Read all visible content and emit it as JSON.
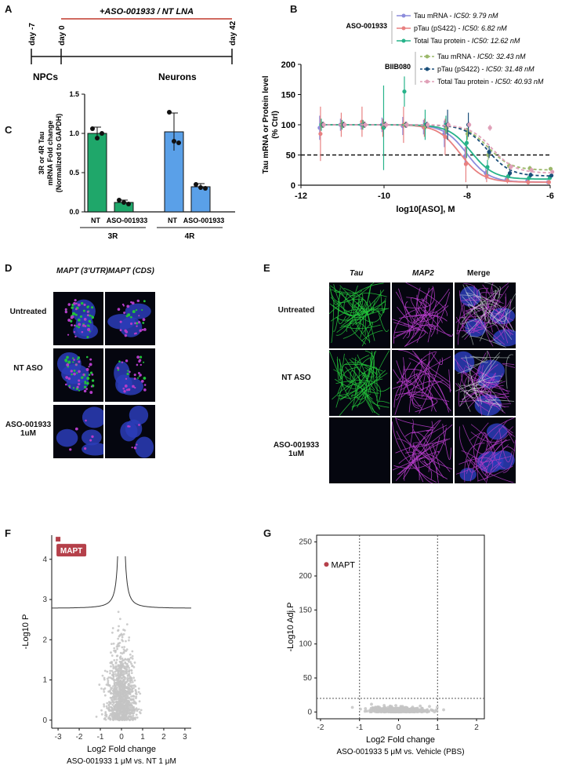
{
  "panel_labels": {
    "A": "A",
    "B": "B",
    "C": "C",
    "D": "D",
    "E": "E",
    "F": "F",
    "G": "G"
  },
  "timeline": {
    "treatment": "+ASO-001933 / NT LNA",
    "days": [
      "day -7",
      "day 0",
      "day 42"
    ],
    "stage_left": "NPCs",
    "stage_right": "Neurons"
  },
  "colors": {
    "tau_mrna": "#8c8cdc",
    "ptau": "#e88080",
    "total_tau": "#27b38a",
    "biib_tau_mrna": "#9bb86a",
    "biib_ptau": "#1a4f7a",
    "biib_total": "#e0a0b8",
    "bar_3r": "#1fa76a",
    "bar_4r": "#5aa0e8",
    "volcano_hit": "#b5404a",
    "volcano_grey": "#c4c4c4",
    "microscopy_blue": "#2b3db8",
    "microscopy_green": "#22c23a",
    "microscopy_magenta": "#b43cc8"
  },
  "panel_b": {
    "legend_groups": [
      {
        "name": "ASO-001933",
        "entries": [
          {
            "label": "Tau mRNA - ",
            "ic50": "IC50: 9.79 nM",
            "color_key": "tau_mrna",
            "dash": false
          },
          {
            "label": "pTau (pS422) - ",
            "ic50": "IC50: 6.82 nM",
            "color_key": "ptau",
            "dash": false
          },
          {
            "label": "Total Tau protein - ",
            "ic50": "IC50: 12.62 nM",
            "color_key": "total_tau",
            "dash": false
          }
        ]
      },
      {
        "name": "BIIB080",
        "entries": [
          {
            "label": "Tau mRNA - ",
            "ic50": "IC50: 32.43 nM",
            "color_key": "biib_tau_mrna",
            "dash": true
          },
          {
            "label": "pTau (pS422) - ",
            "ic50": "IC50: 31.48 nM",
            "color_key": "biib_ptau",
            "dash": true
          },
          {
            "label": "Total Tau protein - ",
            "ic50": "IC50: 40.93 nM",
            "color_key": "biib_total",
            "dash": true
          }
        ]
      }
    ]
  },
  "panel_d": {
    "columns": [
      "MAPT (3'UTR)",
      "MAPT (CDS)"
    ],
    "rows": [
      "Untreated",
      "NT ASO",
      "ASO-001933\n1uM"
    ]
  },
  "panel_e": {
    "columns": [
      "Tau",
      "MAP2",
      "Merge"
    ],
    "rows": [
      "Untreated",
      "NT ASO",
      "ASO-001933\n1uM"
    ]
  },
  "chart_data": [
    {
      "id": "C",
      "type": "bar",
      "ylabel": "3R or 4R Tau\nmRNA Fold change\n(Normalized to GAPDH)",
      "ylim": [
        0,
        1.5
      ],
      "yticks": [
        0.0,
        0.5,
        1.0,
        1.5
      ],
      "groups": [
        {
          "name": "3R",
          "color_key": "bar_3r",
          "bars": [
            {
              "label": "NT",
              "value": 1.0,
              "err": 0.08,
              "points": [
                1.06,
                0.94,
                1.0
              ]
            },
            {
              "label": "ASO-001933",
              "value": 0.12,
              "err": 0.03,
              "points": [
                0.15,
                0.12,
                0.1
              ]
            }
          ]
        },
        {
          "name": "4R",
          "color_key": "bar_4r",
          "bars": [
            {
              "label": "NT",
              "value": 1.02,
              "err": 0.24,
              "points": [
                1.27,
                0.9,
                0.88
              ]
            },
            {
              "label": "ASO-001933",
              "value": 0.32,
              "err": 0.04,
              "points": [
                0.35,
                0.31,
                0.3
              ]
            }
          ]
        }
      ]
    },
    {
      "id": "B",
      "type": "line",
      "xlabel": "log10[ASO], M",
      "ylabel": "Tau mRNA or Protein level\n(% Ctrl)",
      "xlim": [
        -12,
        -6
      ],
      "ylim": [
        0,
        200
      ],
      "xticks": [
        -12,
        -10,
        -8,
        -6
      ],
      "yticks": [
        0,
        50,
        100,
        150,
        200
      ],
      "reference_line": 50,
      "x": [
        -11.5,
        -11,
        -10.5,
        -10,
        -9.5,
        -9,
        -8.5,
        -8,
        -7.5,
        -7,
        -6.5,
        -6
      ],
      "series": [
        {
          "name": "Tau mRNA",
          "color_key": "tau_mrna",
          "ic50_log": -8.01,
          "bottom": 5,
          "dash": false,
          "y": [
            95,
            100,
            100,
            100,
            98,
            96,
            85,
            48,
            20,
            10,
            7,
            5
          ],
          "err": [
            20,
            10,
            8,
            12,
            15,
            12,
            22,
            15,
            10,
            5,
            4,
            3
          ]
        },
        {
          "name": "pTau (pS422)",
          "color_key": "ptau",
          "ic50_log": -8.17,
          "bottom": 5,
          "dash": false,
          "y": [
            85,
            100,
            105,
            95,
            100,
            95,
            80,
            35,
            15,
            8,
            5,
            5
          ],
          "err": [
            45,
            20,
            25,
            15,
            30,
            15,
            30,
            30,
            10,
            5,
            4,
            3
          ]
        },
        {
          "name": "Total Tau protein",
          "color_key": "total_tau",
          "ic50_log": -7.9,
          "bottom": 10,
          "dash": false,
          "y": [
            100,
            100,
            100,
            95,
            155,
            100,
            100,
            70,
            30,
            15,
            12,
            12
          ],
          "err": [
            10,
            8,
            8,
            70,
            25,
            25,
            15,
            25,
            12,
            5,
            4,
            3
          ]
        },
        {
          "name": "Tau mRNA",
          "color_key": "biib_tau_mrna",
          "ic50_log": -7.49,
          "bottom": 25,
          "dash": true,
          "y": [
            100,
            100,
            100,
            100,
            100,
            98,
            95,
            85,
            50,
            32,
            28,
            27
          ],
          "err": [
            5,
            5,
            5,
            5,
            5,
            5,
            8,
            10,
            8,
            5,
            4,
            3
          ]
        },
        {
          "name": "pTau (pS422)",
          "color_key": "biib_ptau",
          "ic50_log": -7.5,
          "bottom": 15,
          "dash": true,
          "y": [
            100,
            100,
            100,
            100,
            100,
            100,
            100,
            100,
            55,
            20,
            17,
            16
          ],
          "err": [
            5,
            5,
            5,
            5,
            5,
            5,
            25,
            20,
            10,
            5,
            4,
            3
          ]
        },
        {
          "name": "Total Tau protein",
          "color_key": "biib_total",
          "ic50_log": -7.39,
          "bottom": 20,
          "dash": true,
          "y": [
            100,
            100,
            100,
            100,
            100,
            100,
            100,
            100,
            95,
            30,
            25,
            22
          ],
          "err": [
            5,
            5,
            5,
            5,
            5,
            5,
            5,
            5,
            5,
            5,
            4,
            3
          ]
        }
      ]
    },
    {
      "id": "F",
      "type": "scatter",
      "xlabel": "Log2 Fold change",
      "ylabel": "-Log10 P",
      "subtitle": "ASO-001933 1 μM vs. NT 1 μM",
      "xlim": [
        -3.3,
        3.3
      ],
      "ylim": [
        -0.2,
        4.6
      ],
      "xticks": [
        -3,
        -2,
        -1,
        0,
        1,
        2,
        3
      ],
      "yticks": [
        0,
        1,
        2,
        3,
        4
      ],
      "highlight": {
        "label": "MAPT",
        "x": -3.0,
        "y": 4.5
      },
      "background_points": {
        "count": 1100,
        "x_center": 0.0,
        "x_spread": 0.45,
        "y_max": 3.2
      }
    },
    {
      "id": "G",
      "type": "scatter",
      "xlabel": "Log2 Fold change",
      "ylabel": "-Log10 Adj.P",
      "subtitle": "ASO-001933 5 μM vs. Vehicle (PBS)",
      "xlim": [
        -2.1,
        2.2
      ],
      "ylim": [
        -10,
        260
      ],
      "xticks": [
        -2,
        -1,
        0,
        1,
        2
      ],
      "yticks": [
        0,
        50,
        100,
        150,
        200,
        250
      ],
      "vlines": [
        -1,
        1
      ],
      "hline": 20,
      "highlight": {
        "label": "MAPT",
        "x": -1.85,
        "y": 217
      },
      "background_points": {
        "count": 500,
        "x_center": 0.0,
        "x_spread": 0.35,
        "y_max": 8
      }
    }
  ]
}
